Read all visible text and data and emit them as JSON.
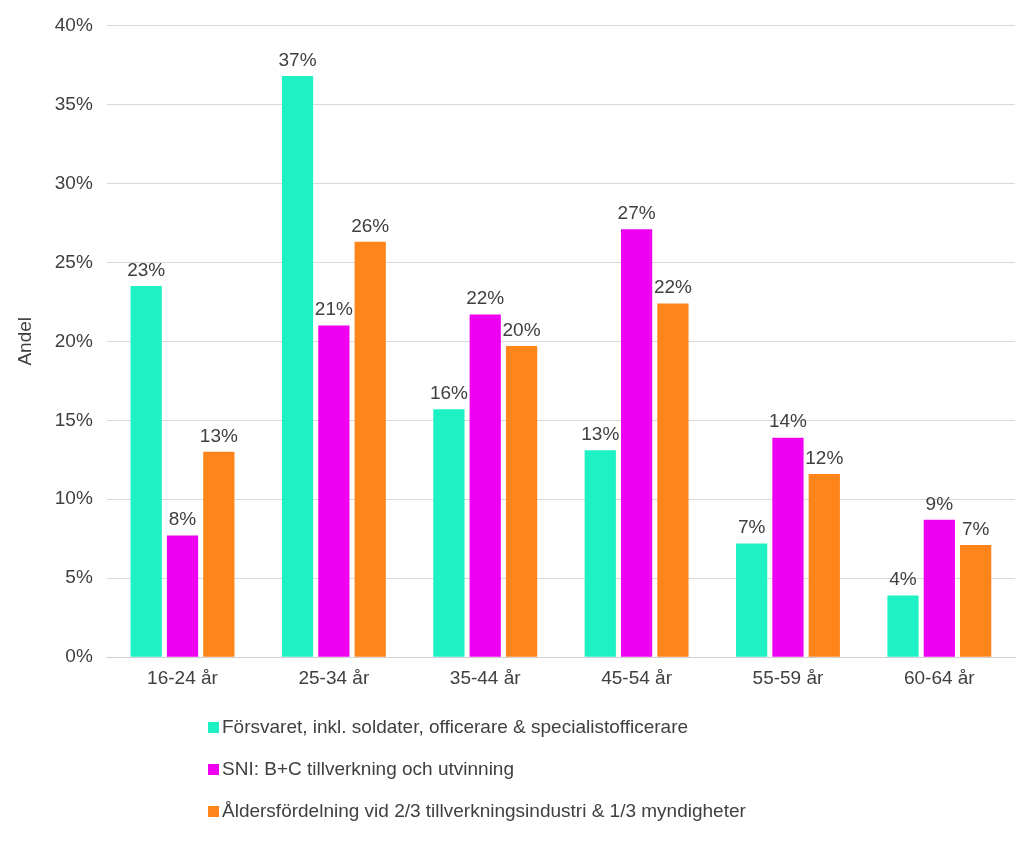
{
  "chart_data": {
    "type": "bar",
    "ylabel": "Andel",
    "categories": [
      "16-24 år",
      "25-34 år",
      "35-44 år",
      "45-54 år",
      "55-59 år",
      "60-64 år"
    ],
    "series": [
      {
        "name": "Försvaret, inkl. soldater, officerare & specialistofficerare",
        "color": "#1ef2c4",
        "values": [
          23.5,
          36.8,
          15.7,
          13.1,
          7.2,
          3.9
        ],
        "value_labels": [
          "23%",
          "37%",
          "16%",
          "13%",
          "7%",
          "4%"
        ]
      },
      {
        "name": "SNI: B+C tillverkning och utvinning",
        "color": "#f000f0",
        "values": [
          7.7,
          21.0,
          21.7,
          27.1,
          13.9,
          8.7
        ],
        "value_labels": [
          "8%",
          "21%",
          "22%",
          "27%",
          "14%",
          "9%"
        ]
      },
      {
        "name": "Åldersfördelning vid 2/3 tillverkningsindustri & 1/3 myndigheter",
        "color": "#ff8419",
        "values": [
          13.0,
          26.3,
          19.7,
          22.4,
          11.6,
          7.1
        ],
        "value_labels": [
          "13%",
          "26%",
          "20%",
          "22%",
          "12%",
          "7%"
        ]
      }
    ],
    "ylim": [
      0,
      40
    ],
    "yticks": [
      {
        "value": 0,
        "label": "0%"
      },
      {
        "value": 5,
        "label": "5%"
      },
      {
        "value": 10,
        "label": "10%"
      },
      {
        "value": 15,
        "label": "15%"
      },
      {
        "value": 20,
        "label": "20%"
      },
      {
        "value": 25,
        "label": "25%"
      },
      {
        "value": 30,
        "label": "30%"
      },
      {
        "value": 35,
        "label": "35%"
      },
      {
        "value": 40,
        "label": "40%"
      }
    ],
    "grid": "y",
    "legend": "bottom"
  }
}
